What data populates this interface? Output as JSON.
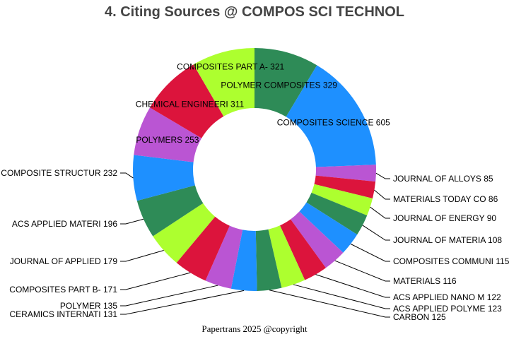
{
  "chart_data": {
    "type": "pie",
    "variant": "donut",
    "title": "4. Citing Sources @ COMPOS SCI TECHNOL",
    "order": "clockwise from top",
    "slices": [
      {
        "label": "POLYMER COMPOSITES",
        "value": 329,
        "color": "#2E8B57"
      },
      {
        "label": "COMPOSITES SCIENCE",
        "value": 605,
        "color": "#1E90FF"
      },
      {
        "label": "JOURNAL OF ALLOYS ",
        "value": 85,
        "color": "#BA55D3"
      },
      {
        "label": "MATERIALS TODAY CO",
        "value": 86,
        "color": "#DC143C"
      },
      {
        "label": "JOURNAL OF ENERGY ",
        "value": 90,
        "color": "#ADFF2F"
      },
      {
        "label": "JOURNAL OF MATERIA",
        "value": 108,
        "color": "#2E8B57"
      },
      {
        "label": "COMPOSITES COMMUNI",
        "value": 115,
        "color": "#1E90FF"
      },
      {
        "label": "MATERIALS",
        "value": 116,
        "color": "#BA55D3"
      },
      {
        "label": "ACS APPLIED NANO M",
        "value": 122,
        "color": "#DC143C"
      },
      {
        "label": "ACS APPLIED POLYME",
        "value": 123,
        "color": "#ADFF2F"
      },
      {
        "label": "CARBON",
        "value": 125,
        "color": "#2E8B57"
      },
      {
        "label": "CERAMICS INTERNATI",
        "value": 131,
        "color": "#1E90FF"
      },
      {
        "label": "POLYMER",
        "value": 135,
        "color": "#BA55D3"
      },
      {
        "label": "COMPOSITES PART B-",
        "value": 171,
        "color": "#DC143C"
      },
      {
        "label": "JOURNAL OF APPLIED",
        "value": 179,
        "color": "#ADFF2F"
      },
      {
        "label": "ACS APPLIED MATERI",
        "value": 196,
        "color": "#2E8B57"
      },
      {
        "label": "COMPOSITE STRUCTUR",
        "value": 232,
        "color": "#1E90FF"
      },
      {
        "label": "POLYMERS",
        "value": 253,
        "color": "#BA55D3"
      },
      {
        "label": "CHEMICAL ENGINEERI",
        "value": 311,
        "color": "#DC143C"
      },
      {
        "label": "COMPOSITES PART A-",
        "value": 321,
        "color": "#ADFF2F"
      }
    ]
  },
  "footer": "Papertrans 2025 @copyright"
}
